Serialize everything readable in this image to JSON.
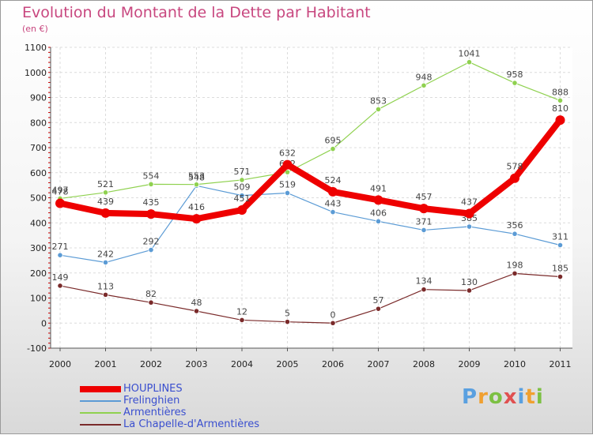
{
  "chart_data": {
    "type": "line",
    "title": "Evolution du Montant de la Dette par Habitant",
    "unit": "(en €)",
    "categories": [
      "2000",
      "2001",
      "2002",
      "2003",
      "2004",
      "2005",
      "2006",
      "2007",
      "2008",
      "2009",
      "2010",
      "2011"
    ],
    "ylim": [
      -100,
      1100
    ],
    "yticks": [
      -100,
      0,
      100,
      200,
      300,
      400,
      500,
      600,
      700,
      800,
      900,
      1000,
      1100
    ],
    "grid": true,
    "series": [
      {
        "name": "HOUPLINES",
        "color": "#ee0000",
        "values": [
          478,
          439,
          435,
          416,
          451,
          632,
          524,
          491,
          457,
          437,
          578,
          810
        ]
      },
      {
        "name": "Frelinghien",
        "color": "#5b9bd5",
        "values": [
          271,
          242,
          292,
          548,
          509,
          519,
          443,
          406,
          371,
          385,
          356,
          311
        ]
      },
      {
        "name": "Armentières",
        "color": "#8fd14f",
        "values": [
          497,
          521,
          554,
          553,
          571,
          602,
          695,
          853,
          948,
          1041,
          958,
          888
        ]
      },
      {
        "name": "La Chapelle-d'Armentières",
        "color": "#7a2a2a",
        "values": [
          149,
          113,
          82,
          48,
          12,
          5,
          0,
          57,
          134,
          130,
          198,
          185
        ]
      }
    ]
  },
  "brand": {
    "letters": [
      "P",
      "r",
      "o",
      "x",
      "i",
      "t",
      "i"
    ],
    "colors": [
      "#5aa0e0",
      "#f0a030",
      "#7cc043",
      "#e05050",
      "#5aa0e0",
      "#f0a030",
      "#7cc043"
    ]
  }
}
